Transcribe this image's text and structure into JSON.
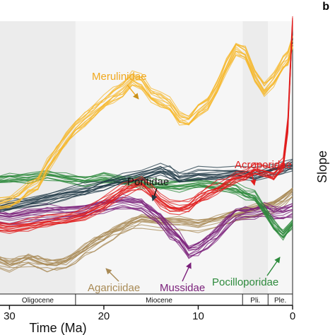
{
  "panel_letter": "b",
  "side_axis_title": "Slope",
  "epochs": [
    {
      "name": "Oligocene",
      "from": 34,
      "to": 23
    },
    {
      "name": "Miocene",
      "from": 23,
      "to": 5.3
    },
    {
      "name": "Pli.",
      "from": 5.3,
      "to": 2.6
    },
    {
      "name": "Ple.",
      "from": 2.6,
      "to": 0
    }
  ],
  "chart_data": {
    "type": "line",
    "title": "",
    "xlabel": "Time (Ma)",
    "ylabel": "",
    "xlim": [
      34,
      0
    ],
    "ylim": [
      0,
      1
    ],
    "x_ticks": [
      30,
      20,
      10,
      0
    ],
    "x_tick_labels": [
      "30",
      "20",
      "10",
      "0"
    ],
    "grid": false,
    "background_bands": "alternating light grey per epoch",
    "series": [
      {
        "name": "Merulinidae",
        "color": "#f5b82e",
        "x": [
          34,
          32,
          30,
          29,
          28,
          27,
          26,
          25,
          24,
          23,
          22,
          21,
          20,
          19,
          18,
          17,
          16,
          15,
          14,
          13,
          12,
          11,
          10,
          9,
          8,
          7,
          6,
          5,
          4,
          3,
          2,
          1,
          0.5,
          0
        ],
        "y": [
          0.3,
          0.3,
          0.31,
          0.33,
          0.36,
          0.38,
          0.45,
          0.5,
          0.55,
          0.6,
          0.63,
          0.66,
          0.69,
          0.72,
          0.74,
          0.78,
          0.77,
          0.72,
          0.7,
          0.68,
          0.63,
          0.62,
          0.66,
          0.69,
          0.75,
          0.83,
          0.9,
          0.88,
          0.79,
          0.74,
          0.78,
          0.84,
          0.86,
          0.92
        ]
      },
      {
        "name": "Poritidae",
        "color": "#1f3845",
        "x": [
          34,
          32,
          30,
          28,
          26,
          24,
          22,
          20,
          18,
          16,
          14,
          13,
          12,
          10,
          8,
          6,
          4,
          2,
          1,
          0
        ],
        "y": [
          0.28,
          0.29,
          0.3,
          0.31,
          0.33,
          0.35,
          0.36,
          0.38,
          0.4,
          0.42,
          0.44,
          0.43,
          0.41,
          0.42,
          0.42,
          0.43,
          0.42,
          0.44,
          0.45,
          0.46
        ]
      },
      {
        "name": "Acroporidae",
        "color": "#e01c1c",
        "x": [
          34,
          32,
          30,
          28,
          26,
          24,
          22,
          20,
          18,
          17,
          16,
          15,
          14,
          13,
          12,
          11,
          10,
          9,
          8,
          7,
          6,
          5,
          4,
          3,
          2,
          1,
          0.5,
          0.2,
          0
        ],
        "y": [
          0.21,
          0.22,
          0.21,
          0.22,
          0.23,
          0.24,
          0.26,
          0.3,
          0.35,
          0.37,
          0.38,
          0.35,
          0.31,
          0.29,
          0.28,
          0.29,
          0.32,
          0.34,
          0.36,
          0.38,
          0.4,
          0.41,
          0.43,
          0.42,
          0.41,
          0.45,
          0.6,
          0.85,
          1.0
        ]
      },
      {
        "name": "Pocilloporidae",
        "color": "#2d8a3c",
        "x": [
          34,
          32,
          30,
          28,
          26,
          24,
          22,
          20,
          18,
          16,
          14,
          12,
          10,
          8,
          6,
          5,
          4,
          3,
          2,
          1,
          0
        ],
        "y": [
          0.37,
          0.39,
          0.4,
          0.4,
          0.41,
          0.4,
          0.39,
          0.4,
          0.39,
          0.38,
          0.37,
          0.37,
          0.38,
          0.37,
          0.36,
          0.34,
          0.33,
          0.28,
          0.22,
          0.18,
          0.23
        ]
      },
      {
        "name": "Agariciidae",
        "color": "#a88a55",
        "x": [
          34,
          33,
          32,
          31,
          30,
          29,
          28,
          27,
          26,
          25,
          24,
          23,
          22,
          21,
          20,
          19,
          18,
          17,
          16,
          14,
          12,
          10,
          8,
          6,
          4,
          2,
          1,
          0
        ],
        "y": [
          0.17,
          0.15,
          0.11,
          0.08,
          0.07,
          0.08,
          0.09,
          0.08,
          0.07,
          0.07,
          0.08,
          0.1,
          0.13,
          0.15,
          0.17,
          0.19,
          0.21,
          0.23,
          0.24,
          0.23,
          0.23,
          0.22,
          0.24,
          0.26,
          0.28,
          0.3,
          0.32,
          0.35
        ]
      },
      {
        "name": "Mussidae",
        "color": "#7a1f7a",
        "x": [
          34,
          32,
          30,
          28,
          26,
          24,
          22,
          20,
          18,
          16,
          15,
          14,
          13,
          12,
          11,
          10,
          9,
          8,
          7,
          6,
          5,
          4,
          3,
          2,
          1,
          0
        ],
        "y": [
          0.25,
          0.26,
          0.25,
          0.26,
          0.27,
          0.27,
          0.28,
          0.3,
          0.31,
          0.3,
          0.27,
          0.24,
          0.2,
          0.17,
          0.12,
          0.13,
          0.16,
          0.19,
          0.23,
          0.26,
          0.27,
          0.27,
          0.28,
          0.27,
          0.27,
          0.28
        ]
      }
    ],
    "annotations": [
      {
        "text": "Merulinidae",
        "series": "Merulinidae"
      },
      {
        "text": "Poritidae",
        "series": "Poritidae"
      },
      {
        "text": "Acroporidae",
        "series": "Acroporidae"
      },
      {
        "text": "Agariciidae",
        "series": "Agariciidae"
      },
      {
        "text": "Mussidae",
        "series": "Mussidae"
      },
      {
        "text": "Pocilloporidae",
        "series": "Pocilloporidae"
      }
    ]
  }
}
